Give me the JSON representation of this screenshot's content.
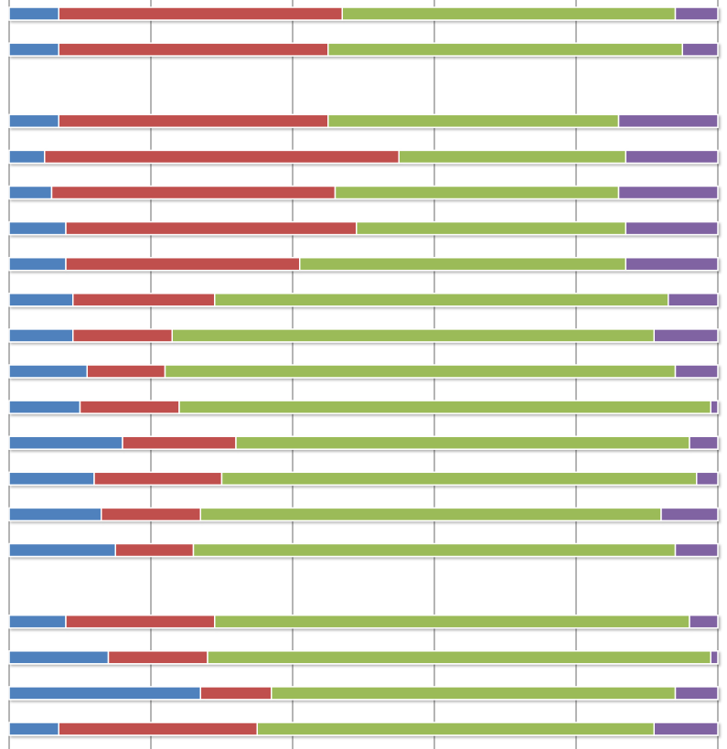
{
  "chart_data": {
    "type": "bar",
    "orientation": "horizontal",
    "stacked": "percent",
    "title": "",
    "xlabel": "",
    "ylabel": "",
    "xlim": [
      0,
      100
    ],
    "grid": true,
    "legend": "none",
    "series": [
      {
        "color": "#4f81bd",
        "values": [
          7,
          7,
          null,
          7,
          5,
          6,
          8,
          8,
          9,
          9,
          11,
          10,
          16,
          12,
          13,
          15,
          null,
          8,
          14,
          27,
          7
        ]
      },
      {
        "color": "#c0504d",
        "values": [
          40,
          38,
          null,
          38,
          50,
          40,
          41,
          33,
          20,
          14,
          11,
          14,
          16,
          18,
          14,
          11,
          null,
          21,
          14,
          10,
          28
        ]
      },
      {
        "color": "#9bbb59",
        "values": [
          47,
          50,
          null,
          41,
          32,
          40,
          38,
          46,
          64,
          68,
          72,
          75,
          64,
          67,
          65,
          68,
          null,
          67,
          71,
          57,
          56
        ]
      },
      {
        "color": "#8064a2",
        "values": [
          6,
          5,
          null,
          14,
          13,
          14,
          13,
          13,
          7,
          9,
          6,
          1,
          4,
          3,
          8,
          6,
          null,
          4,
          1,
          6,
          9
        ]
      }
    ]
  }
}
